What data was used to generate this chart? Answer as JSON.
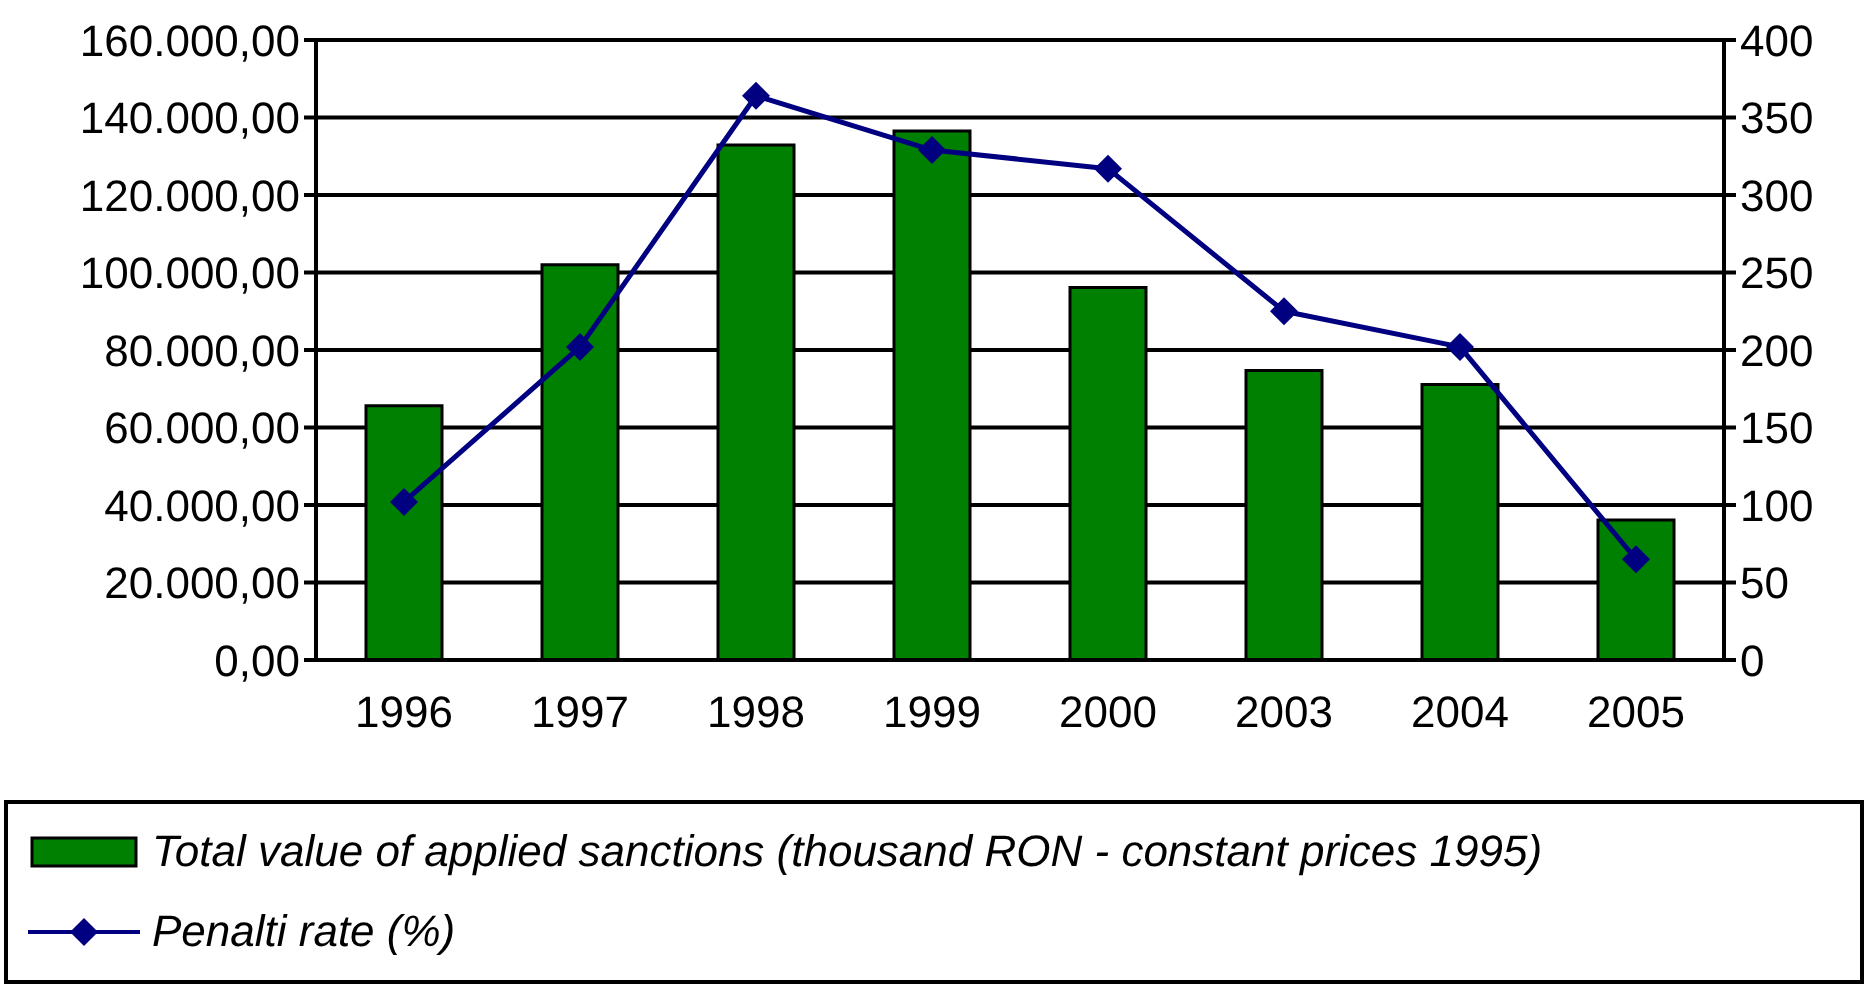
{
  "chart_data": {
    "type": "bar",
    "categories": [
      "1996",
      "1997",
      "1998",
      "1999",
      "2000",
      "2003",
      "2004",
      "2005"
    ],
    "series": [
      {
        "name": "Total value of applied sanctions (thousand RON - constant prices 1995)",
        "color": "#008000",
        "values": [
          65600,
          102000,
          132900,
          136500,
          96100,
          74700,
          71100,
          36100
        ]
      },
      {
        "name": "Penalti rate (%)",
        "type": "line",
        "axis": "y2",
        "color": "#000080",
        "marker": "diamond",
        "values": [
          102,
          202,
          364,
          329,
          317,
          225,
          202,
          65
        ]
      }
    ],
    "ylim": [
      0,
      160000
    ],
    "yticks": [
      {
        "value": 0,
        "label": "0,00"
      },
      {
        "value": 20000,
        "label": "20.000,00"
      },
      {
        "value": 40000,
        "label": "40.000,00"
      },
      {
        "value": 60000,
        "label": "60.000,00"
      },
      {
        "value": 80000,
        "label": "80.000,00"
      },
      {
        "value": 100000,
        "label": "100.000,00"
      },
      {
        "value": 120000,
        "label": "120.000,00"
      },
      {
        "value": 140000,
        "label": "140.000,00"
      },
      {
        "value": 160000,
        "label": "160.000,00"
      }
    ],
    "y2lim": [
      0,
      400
    ],
    "y2ticks": [
      0,
      50,
      100,
      150,
      200,
      250,
      300,
      350,
      400
    ],
    "grid": "y",
    "legend": "bottom"
  }
}
